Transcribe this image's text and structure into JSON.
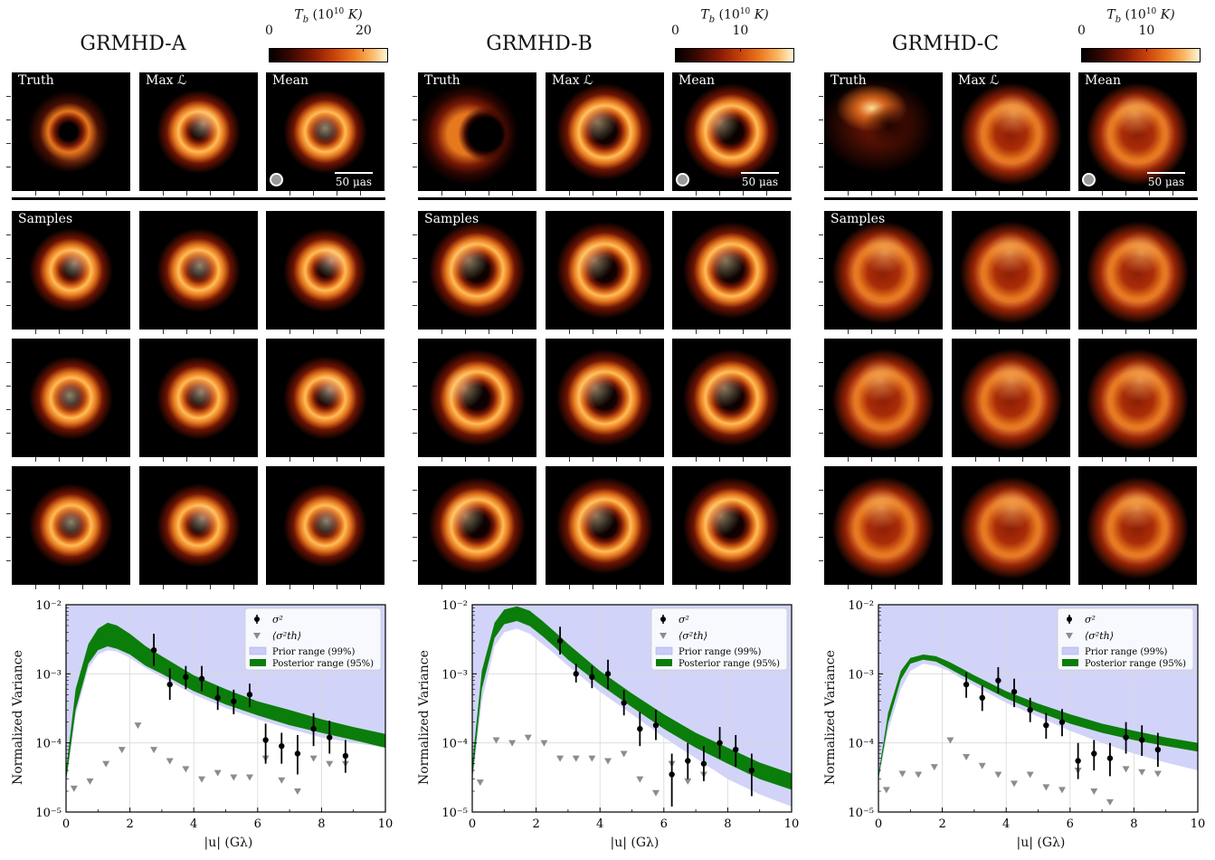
{
  "colorbar": {
    "label_main": "T",
    "label_sub": "b",
    "label_unit_pre": " (10",
    "label_unit_sup": "10",
    "label_unit_post": " K)"
  },
  "image_labels": {
    "truth": "Truth",
    "maxl": "Max ℒ",
    "mean": "Mean",
    "samples": "Samples",
    "scale": "50 μas"
  },
  "columns": [
    {
      "title": "GRMHD-A",
      "cbar_ticks": [
        {
          "label": "0",
          "frac": 0.0
        },
        {
          "label": "20",
          "frac": 0.8
        }
      ],
      "truth_style": "crescent-small",
      "ring_style": "bright-small"
    },
    {
      "title": "GRMHD-B",
      "cbar_ticks": [
        {
          "label": "0",
          "frac": 0.0
        },
        {
          "label": "10",
          "frac": 0.55
        }
      ],
      "truth_style": "crescent-large",
      "ring_style": "bright-large"
    },
    {
      "title": "GRMHD-C",
      "cbar_ticks": [
        {
          "label": "0",
          "frac": 0.0
        },
        {
          "label": "10",
          "frac": 0.55
        }
      ],
      "truth_style": "blob-offset",
      "ring_style": "diffuse-large"
    }
  ],
  "plot_text": {
    "ylabel": "Normalized Variance",
    "xlabel": "|u| (Gλ)",
    "legend_sigma": "σ²",
    "legend_sigma_th": "⟨σ²th⟩",
    "legend_prior": "Prior range (99%)",
    "legend_posterior": "Posterior range (95%)",
    "ytick_labels": [
      "10⁻²",
      "10⁻³",
      "10⁻⁴",
      "10⁻⁵"
    ],
    "xtick_labels": [
      "0",
      "2",
      "4",
      "6",
      "8",
      "10"
    ]
  },
  "colors": {
    "prior_fill": "#c9ccf7",
    "posterior_fill": "#0b7d0b",
    "points": "#000000",
    "triangles": "#8c8c8c"
  },
  "chart_data": [
    {
      "type": "scatter",
      "title": "GRMHD-A",
      "xlabel": "|u| (Gλ)",
      "ylabel": "Normalized Variance",
      "xlim": [
        0,
        10
      ],
      "ylim": [
        1e-05,
        0.01
      ],
      "yscale": "log",
      "grid": true,
      "legend": "top-right",
      "sigma2": {
        "x": [
          2.75,
          3.25,
          3.75,
          4.25,
          4.75,
          5.25,
          5.75,
          6.25,
          6.75,
          7.25,
          7.75,
          8.25,
          8.75
        ],
        "y": [
          0.0022,
          0.0007,
          0.0009,
          0.00085,
          0.00045,
          0.0004,
          0.0005,
          0.00011,
          9e-05,
          7e-05,
          0.00016,
          0.00012,
          6.5e-05
        ],
        "lo": [
          0.0013,
          0.00042,
          0.0006,
          0.00056,
          0.0003,
          0.00026,
          0.00033,
          5e-05,
          5e-05,
          3.5e-05,
          9e-05,
          7e-05,
          3.7e-05
        ],
        "hi": [
          0.0038,
          0.0012,
          0.0013,
          0.0013,
          0.00065,
          0.00059,
          0.00072,
          0.00019,
          0.00014,
          0.00013,
          0.00027,
          0.00021,
          0.00011
        ]
      },
      "sigma2_th": {
        "x": [
          0.25,
          0.75,
          1.25,
          1.75,
          2.25,
          2.75,
          3.25,
          3.75,
          4.25,
          4.75,
          5.25,
          5.75,
          6.25,
          6.75,
          7.25,
          7.75,
          8.25,
          8.75
        ],
        "y": [
          2.2e-05,
          2.8e-05,
          5e-05,
          8e-05,
          0.00018,
          8e-05,
          5.5e-05,
          4.2e-05,
          3e-05,
          3.7e-05,
          3.2e-05,
          3.2e-05,
          6e-05,
          2.9e-05,
          2e-05,
          6e-05,
          5e-05,
          5e-05
        ]
      },
      "prior_range": {
        "x": [
          0,
          0.3,
          0.7,
          1.0,
          1.3,
          1.6,
          2.0,
          2.5,
          3,
          4,
          5,
          6,
          7,
          8,
          9,
          10
        ],
        "lower": [
          2.5e-05,
          0.00025,
          0.0012,
          0.0019,
          0.0022,
          0.0021,
          0.0017,
          0.0012,
          0.0009,
          0.0005,
          0.00032,
          0.00022,
          0.00016,
          0.00012,
          0.0001,
          8.5e-05
        ],
        "upper": [
          0.01,
          0.01,
          0.01,
          0.01,
          0.01,
          0.01,
          0.01,
          0.01,
          0.01,
          0.01,
          0.01,
          0.01,
          0.01,
          0.01,
          0.01,
          0.01
        ]
      },
      "posterior_range": {
        "x": [
          0,
          0.3,
          0.7,
          1.0,
          1.3,
          1.6,
          2.0,
          2.5,
          3,
          4,
          5,
          6,
          7,
          8,
          9,
          10
        ],
        "lower": [
          2.8e-05,
          0.0003,
          0.0014,
          0.0022,
          0.0025,
          0.0023,
          0.0019,
          0.0013,
          0.001,
          0.00056,
          0.00036,
          0.00025,
          0.00018,
          0.00014,
          0.00011,
          8.5e-05
        ],
        "upper": [
          4e-05,
          0.0006,
          0.0027,
          0.0045,
          0.0055,
          0.005,
          0.0038,
          0.0025,
          0.0018,
          0.00095,
          0.0006,
          0.0004,
          0.0003,
          0.00022,
          0.00017,
          0.000135
        ]
      }
    },
    {
      "type": "scatter",
      "title": "GRMHD-B",
      "xlabel": "|u| (Gλ)",
      "ylabel": "Normalized Variance",
      "xlim": [
        0,
        10
      ],
      "ylim": [
        1e-05,
        0.01
      ],
      "yscale": "log",
      "grid": true,
      "legend": "top-right",
      "sigma2": {
        "x": [
          2.75,
          3.25,
          3.75,
          4.25,
          4.75,
          5.25,
          5.75,
          6.25,
          6.75,
          7.25,
          7.75,
          8.25,
          8.75
        ],
        "y": [
          0.003,
          0.001,
          0.0009,
          0.001,
          0.00038,
          0.00016,
          0.00018,
          3.5e-05,
          5.5e-05,
          5e-05,
          0.0001,
          8e-05,
          4e-05
        ],
        "lo": [
          0.0019,
          0.00075,
          0.00062,
          0.0006,
          0.00025,
          9e-05,
          0.00011,
          1.2e-05,
          3e-05,
          2.8e-05,
          6e-05,
          4.5e-05,
          1.7e-05
        ],
        "hi": [
          0.0048,
          0.0014,
          0.0013,
          0.0016,
          0.00058,
          0.00028,
          0.0003,
          7e-05,
          0.0001,
          9e-05,
          0.00017,
          0.00013,
          7e-05
        ]
      },
      "sigma2_th": {
        "x": [
          0.25,
          0.75,
          1.25,
          1.75,
          2.25,
          2.75,
          3.25,
          3.75,
          4.25,
          4.75,
          5.25,
          5.75,
          6.25,
          6.75,
          7.25
        ],
        "y": [
          2.7e-05,
          0.00011,
          0.0001,
          0.00012,
          0.0001,
          6e-05,
          6e-05,
          6e-05,
          5.5e-05,
          7e-05,
          3e-05,
          1.9e-05,
          5e-05,
          2.8e-05,
          3.5e-05
        ]
      },
      "prior_range": {
        "x": [
          0,
          0.3,
          0.7,
          1.0,
          1.4,
          1.8,
          2.2,
          2.6,
          3,
          4,
          5,
          6,
          7,
          8,
          9,
          10
        ],
        "lower": [
          2.5e-05,
          0.0004,
          0.0025,
          0.004,
          0.0045,
          0.0038,
          0.0027,
          0.0019,
          0.0013,
          0.00055,
          0.00026,
          0.00012,
          6e-05,
          3e-05,
          1.8e-05,
          1.2e-05
        ],
        "upper": [
          0.01,
          0.01,
          0.01,
          0.01,
          0.01,
          0.01,
          0.01,
          0.01,
          0.01,
          0.01,
          0.01,
          0.01,
          0.01,
          0.01,
          0.01,
          0.01
        ]
      },
      "posterior_range": {
        "x": [
          0,
          0.3,
          0.7,
          1.0,
          1.4,
          1.8,
          2.2,
          2.6,
          3,
          4,
          5,
          6,
          7,
          8,
          9,
          10
        ],
        "lower": [
          3e-05,
          0.0006,
          0.0033,
          0.0052,
          0.0058,
          0.0049,
          0.0035,
          0.0024,
          0.0016,
          0.0007,
          0.00033,
          0.00016,
          8.5e-05,
          5e-05,
          3e-05,
          2.1e-05
        ],
        "upper": [
          5e-05,
          0.0011,
          0.0055,
          0.0085,
          0.0095,
          0.0082,
          0.0058,
          0.004,
          0.0027,
          0.0011,
          0.00052,
          0.00026,
          0.00014,
          8.5e-05,
          5.2e-05,
          3.6e-05
        ]
      }
    },
    {
      "type": "scatter",
      "title": "GRMHD-C",
      "xlabel": "|u| (Gλ)",
      "ylabel": "Normalized Variance",
      "xlim": [
        0,
        10
      ],
      "ylim": [
        1e-05,
        0.01
      ],
      "yscale": "log",
      "grid": true,
      "legend": "top-right",
      "sigma2": {
        "x": [
          2.75,
          3.25,
          3.75,
          4.25,
          4.75,
          5.25,
          5.75,
          6.25,
          6.75,
          7.25,
          7.75,
          8.25,
          8.75
        ],
        "y": [
          0.0007,
          0.00045,
          0.0008,
          0.00055,
          0.0003,
          0.00018,
          0.0002,
          5.5e-05,
          7e-05,
          6e-05,
          0.00012,
          0.00011,
          8e-05
        ],
        "lo": [
          0.00045,
          0.00029,
          0.00052,
          0.00033,
          0.0002,
          0.000115,
          0.000125,
          3e-05,
          4e-05,
          3.3e-05,
          7e-05,
          6.5e-05,
          4.5e-05
        ],
        "hi": [
          0.00105,
          0.00068,
          0.00125,
          0.00085,
          0.00045,
          0.00027,
          0.00031,
          0.0001,
          0.00011,
          0.0001,
          0.0002,
          0.00018,
          0.00014
        ]
      },
      "sigma2_th": {
        "x": [
          0.25,
          0.75,
          1.25,
          1.75,
          2.25,
          2.75,
          3.25,
          3.75,
          4.25,
          4.75,
          5.25,
          5.75,
          6.25,
          6.75,
          7.25,
          7.75,
          8.25,
          8.75
        ],
        "y": [
          2.1e-05,
          3.6e-05,
          3.5e-05,
          4.5e-05,
          0.00011,
          6.3e-05,
          4.7e-05,
          3.5e-05,
          2.6e-05,
          3.5e-05,
          2.3e-05,
          2.1e-05,
          4e-05,
          2e-05,
          1.4e-05,
          4.2e-05,
          3.8e-05,
          3.6e-05
        ]
      },
      "prior_range": {
        "x": [
          0,
          0.3,
          0.7,
          1.0,
          1.4,
          1.8,
          2.2,
          2.6,
          3,
          4,
          5,
          6,
          7,
          8,
          9,
          10
        ],
        "lower": [
          3e-05,
          0.00015,
          0.0006,
          0.0011,
          0.0014,
          0.0013,
          0.0011,
          0.00085,
          0.00068,
          0.00038,
          0.00024,
          0.00015,
          0.0001,
          7e-05,
          5.2e-05,
          4e-05
        ],
        "upper": [
          0.01,
          0.01,
          0.01,
          0.01,
          0.01,
          0.01,
          0.01,
          0.01,
          0.01,
          0.01,
          0.01,
          0.01,
          0.01,
          0.01,
          0.01,
          0.01
        ]
      },
      "posterior_range": {
        "x": [
          0,
          0.3,
          0.7,
          1.0,
          1.4,
          1.8,
          2.2,
          2.6,
          3,
          4,
          5,
          6,
          7,
          8,
          9,
          10
        ],
        "lower": [
          3e-05,
          0.00019,
          0.00082,
          0.0014,
          0.0016,
          0.0015,
          0.0012,
          0.00095,
          0.00076,
          0.00044,
          0.00028,
          0.00019,
          0.00014,
          0.00011,
          9e-05,
          7.5e-05
        ],
        "upper": [
          3.5e-05,
          0.00027,
          0.0011,
          0.0017,
          0.0019,
          0.0018,
          0.0015,
          0.0012,
          0.00095,
          0.00056,
          0.00037,
          0.00026,
          0.00019,
          0.00015,
          0.00012,
          0.0001
        ]
      }
    }
  ]
}
